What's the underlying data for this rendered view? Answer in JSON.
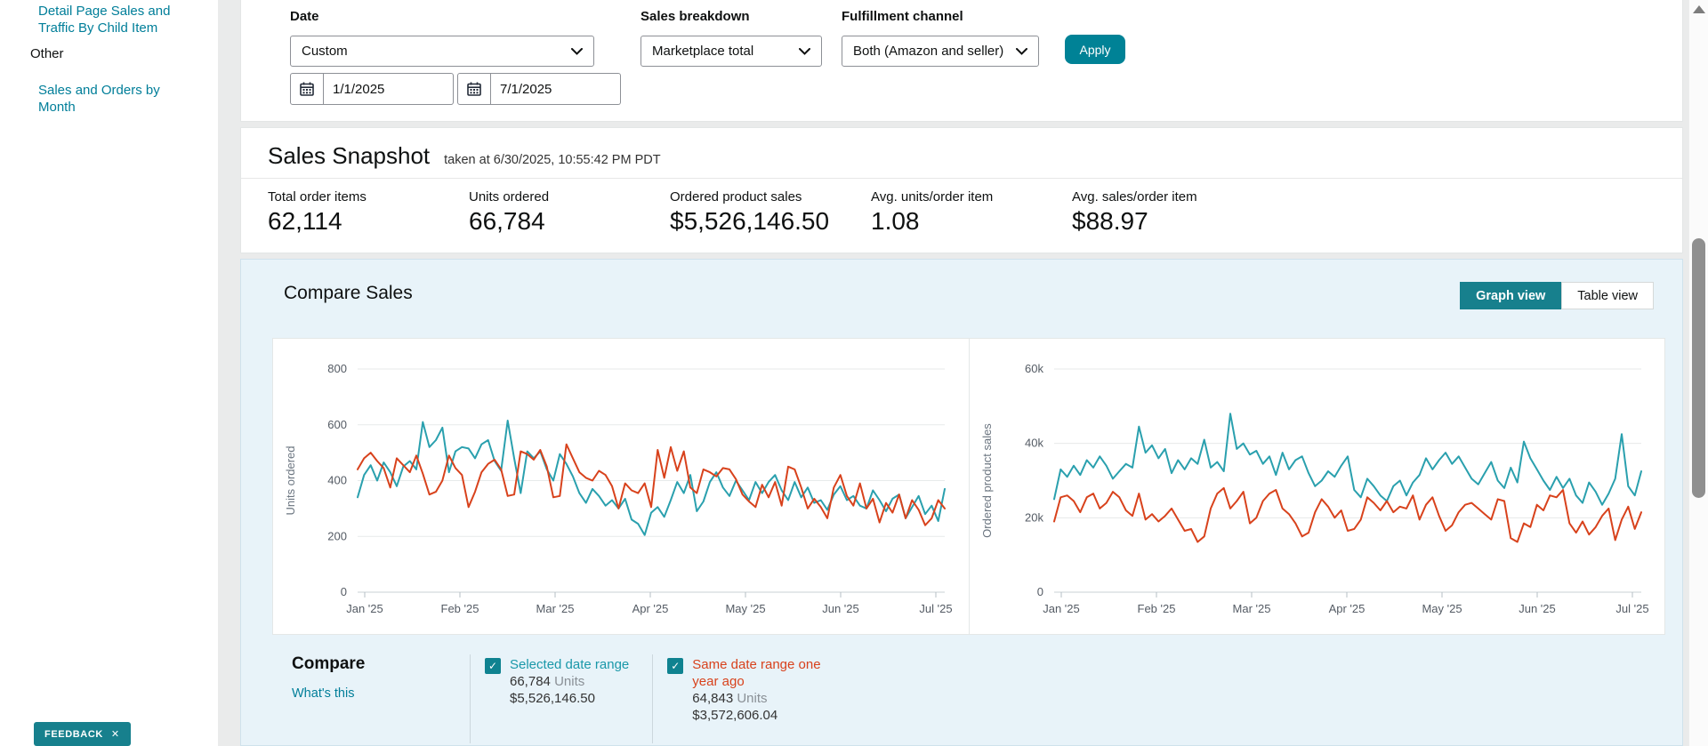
{
  "sidebar": {
    "items": [
      {
        "label": "Detail Page Sales and Traffic By Child Item"
      },
      {
        "label": "Other"
      },
      {
        "label": "Sales and Orders by Month"
      }
    ]
  },
  "filters": {
    "date_label": "Date",
    "date_value": "Custom",
    "start_date": "1/1/2025",
    "end_date": "7/1/2025",
    "sales_breakdown_label": "Sales breakdown",
    "sales_breakdown_value": "Marketplace total",
    "fulfillment_label": "Fulfillment channel",
    "fulfillment_value": "Both (Amazon and seller)",
    "apply_label": "Apply"
  },
  "snapshot": {
    "title": "Sales Snapshot",
    "taken_at": "taken at 6/30/2025, 10:55:42 PM PDT",
    "metrics": [
      {
        "label": "Total order items",
        "value": "62,114"
      },
      {
        "label": "Units ordered",
        "value": "66,784"
      },
      {
        "label": "Ordered product sales",
        "value": "$5,526,146.50"
      },
      {
        "label": "Avg. units/order item",
        "value": "1.08"
      },
      {
        "label": "Avg. sales/order item",
        "value": "$88.97"
      }
    ]
  },
  "compare_sales": {
    "title": "Compare Sales",
    "graph_view_label": "Graph view",
    "table_view_label": "Table view",
    "active_view": "graph",
    "compare": {
      "heading": "Compare",
      "whats_this": "What's this",
      "items": [
        {
          "label": "Selected date range",
          "units": "66,784",
          "units_suffix": "Units",
          "sales": "$5,526,146.50",
          "color": "#1a98a9",
          "checked": true
        },
        {
          "label": "Same date range one year ago",
          "units": "64,843",
          "units_suffix": "Units",
          "sales": "$3,572,606.04",
          "color": "#d8421c",
          "checked": true
        }
      ]
    }
  },
  "feedback": {
    "label": "FEEDBACK",
    "close_icon": "✕"
  },
  "icons": {
    "check": "✓"
  },
  "chart_data": [
    {
      "type": "line",
      "title": "",
      "xlabel": "",
      "ylabel": "Units ordered",
      "ylim": [
        0,
        800
      ],
      "yticks": [
        0,
        200,
        400,
        600,
        800
      ],
      "ytick_labels": [
        "0",
        "200",
        "400",
        "600",
        "800"
      ],
      "xtick_labels": [
        "Jan '25",
        "Feb '25",
        "Mar '25",
        "Apr '25",
        "May '25",
        "Jun '25",
        "Jul '25"
      ],
      "grid": "horizontal",
      "legend_position": "none",
      "series": [
        {
          "name": "Selected date range",
          "color": "#2aa0ae",
          "values": [
            340,
            420,
            455,
            400,
            465,
            430,
            380,
            450,
            470,
            440,
            610,
            520,
            545,
            590,
            430,
            505,
            520,
            515,
            480,
            530,
            545,
            470,
            435,
            615,
            480,
            355,
            505,
            480,
            505,
            440,
            400,
            495,
            460,
            415,
            355,
            320,
            370,
            345,
            310,
            330,
            300,
            335,
            260,
            245,
            205,
            285,
            305,
            270,
            330,
            395,
            355,
            420,
            290,
            325,
            395,
            430,
            375,
            345,
            400,
            365,
            330,
            395,
            355,
            395,
            420,
            365,
            330,
            395,
            340,
            375,
            320,
            330,
            295,
            350,
            380,
            330,
            345,
            310,
            300,
            365,
            330,
            290,
            335,
            350,
            265,
            305,
            345,
            280,
            310,
            255,
            370
          ]
        },
        {
          "name": "Same date range one year ago",
          "color": "#d8421c",
          "values": [
            440,
            480,
            500,
            470,
            445,
            375,
            480,
            455,
            430,
            490,
            425,
            350,
            360,
            400,
            490,
            445,
            420,
            305,
            360,
            430,
            460,
            475,
            440,
            345,
            350,
            505,
            495,
            475,
            510,
            450,
            340,
            345,
            530,
            480,
            430,
            410,
            400,
            435,
            420,
            380,
            300,
            390,
            365,
            355,
            390,
            305,
            510,
            410,
            520,
            435,
            505,
            375,
            355,
            440,
            430,
            415,
            445,
            440,
            405,
            350,
            325,
            305,
            385,
            340,
            395,
            310,
            450,
            440,
            375,
            300,
            335,
            305,
            265,
            375,
            420,
            345,
            310,
            390,
            300,
            335,
            250,
            320,
            285,
            350,
            265,
            330,
            295,
            240,
            265,
            330,
            300
          ]
        }
      ]
    },
    {
      "type": "line",
      "title": "",
      "xlabel": "",
      "ylabel": "Ordered product sales",
      "ylim": [
        0,
        60000
      ],
      "yticks": [
        0,
        20000,
        40000,
        60000
      ],
      "ytick_labels": [
        "0",
        "20k",
        "40k",
        "60k"
      ],
      "xtick_labels": [
        "Jan '25",
        "Feb '25",
        "Mar '25",
        "Apr '25",
        "May '25",
        "Jun '25",
        "Jul '25"
      ],
      "grid": "horizontal",
      "legend_position": "none",
      "series": [
        {
          "name": "Selected date range",
          "color": "#2aa0ae",
          "values": [
            25000,
            33000,
            31000,
            34000,
            31500,
            35500,
            33500,
            36500,
            34000,
            30500,
            32500,
            34500,
            33500,
            44500,
            37500,
            39500,
            36000,
            38500,
            32000,
            35500,
            33000,
            36000,
            34500,
            41000,
            33500,
            35000,
            32500,
            48000,
            38500,
            40000,
            37000,
            38000,
            34500,
            36500,
            31500,
            37500,
            33000,
            35500,
            36500,
            32000,
            28500,
            30000,
            32500,
            31000,
            34000,
            36500,
            27500,
            25500,
            30500,
            28500,
            26000,
            24500,
            28500,
            30000,
            26000,
            29500,
            31500,
            36000,
            33000,
            35500,
            37500,
            34500,
            36500,
            33500,
            30500,
            29000,
            32000,
            35000,
            30000,
            28000,
            33500,
            29500,
            40500,
            36000,
            33000,
            30000,
            27500,
            31000,
            28000,
            30500,
            26000,
            24000,
            29500,
            27000,
            23500,
            26500,
            30500,
            42500,
            28500,
            26000,
            32500
          ]
        },
        {
          "name": "Same date range one year ago",
          "color": "#d8421c",
          "values": [
            19000,
            25500,
            26000,
            24500,
            21500,
            25500,
            26500,
            22500,
            24000,
            27000,
            25500,
            22000,
            20500,
            26500,
            19500,
            21000,
            19000,
            20500,
            22500,
            19500,
            16500,
            17000,
            13500,
            15000,
            22500,
            26500,
            28000,
            22500,
            24500,
            27000,
            18500,
            20000,
            24500,
            26500,
            27500,
            22500,
            21000,
            18500,
            15000,
            16000,
            21500,
            25000,
            23000,
            20000,
            22000,
            16500,
            17000,
            19500,
            25500,
            24000,
            22000,
            24500,
            21500,
            23000,
            22500,
            26000,
            19500,
            23500,
            25500,
            20500,
            16500,
            18000,
            21500,
            23500,
            24000,
            22500,
            21000,
            19500,
            25000,
            24500,
            14500,
            13500,
            18500,
            17500,
            23500,
            22000,
            26000,
            25500,
            27500,
            18500,
            16000,
            19000,
            15500,
            17500,
            20500,
            22500,
            14000,
            19500,
            23000,
            17000,
            21500
          ]
        }
      ]
    }
  ]
}
